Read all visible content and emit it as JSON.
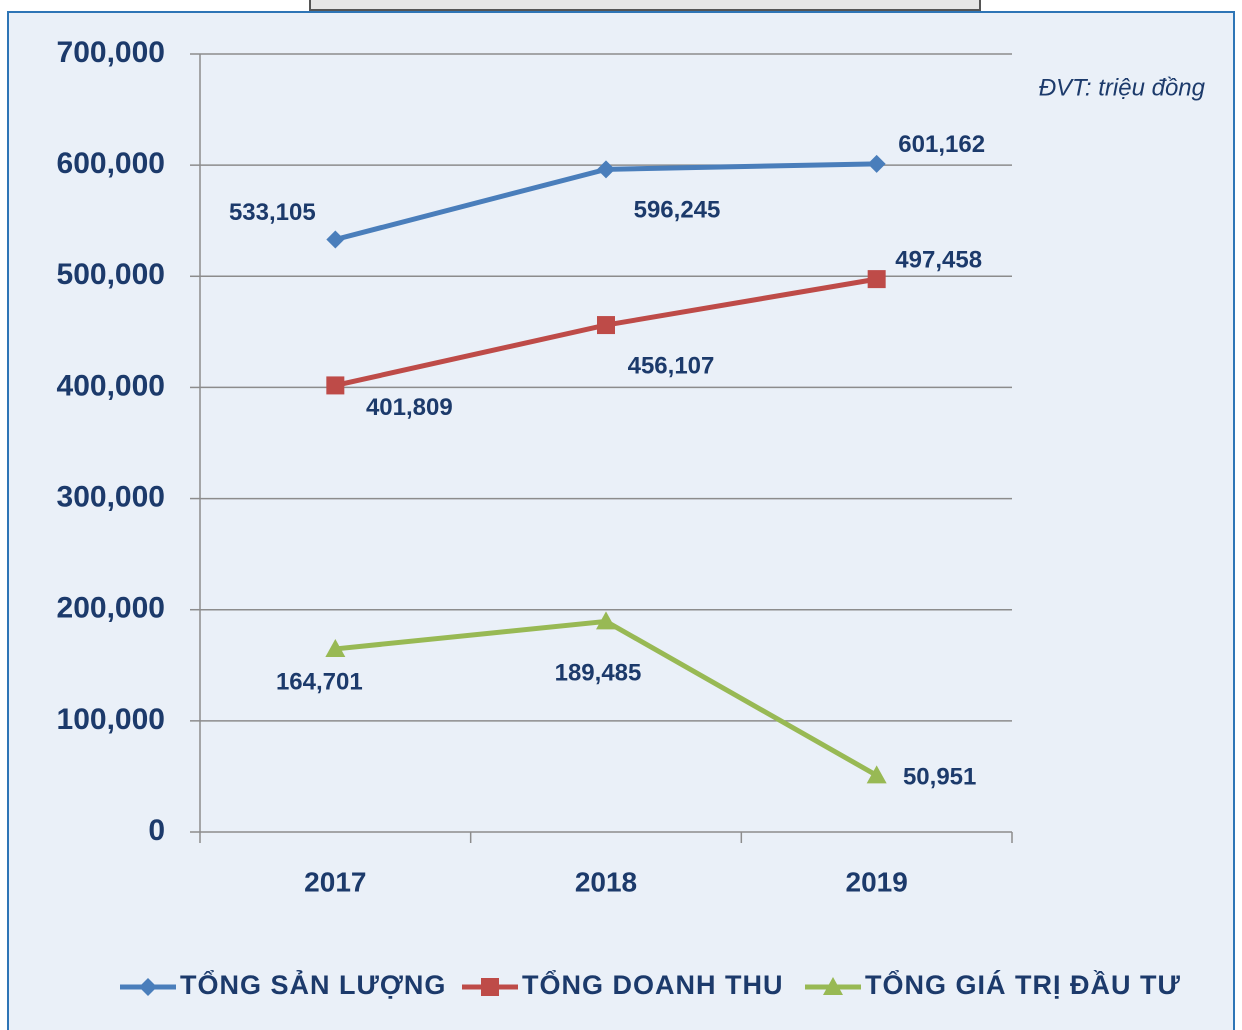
{
  "chart_data": {
    "type": "line",
    "annotation": "ĐVT: triệu đồng",
    "categories": [
      "2017",
      "2018",
      "2019"
    ],
    "series": [
      {
        "name": "TỔNG SẢN LƯỢNG",
        "color": "#4a7ebb",
        "marker": "diamond",
        "values": [
          533105,
          596245,
          601162
        ],
        "value_labels": [
          "533,105",
          "596,245",
          "601,162"
        ]
      },
      {
        "name": "TỔNG DOANH THU",
        "color": "#be4b48",
        "marker": "square",
        "values": [
          401809,
          456107,
          497458
        ],
        "value_labels": [
          "401,809",
          "456,107",
          "497,458"
        ]
      },
      {
        "name": "TỔNG GIÁ TRỊ ĐẦU TƯ",
        "color": "#98b954",
        "marker": "triangle",
        "values": [
          164701,
          189485,
          50951
        ],
        "value_labels": [
          "164,701",
          "189,485",
          "50,951"
        ]
      }
    ],
    "ylim": [
      0,
      700000
    ],
    "yticks": [
      0,
      {
        "value": 100000,
        "label": "100,000"
      },
      {
        "value": 200000,
        "label": "200,000"
      },
      {
        "value": 300000,
        "label": "300,000"
      },
      {
        "value": 400000,
        "label": "400,000"
      },
      {
        "value": 500000,
        "label": "500,000"
      },
      {
        "value": 600000,
        "label": "600,000"
      },
      {
        "value": 700000,
        "label": "700,000"
      }
    ],
    "grid": true,
    "legend": "bottom"
  }
}
